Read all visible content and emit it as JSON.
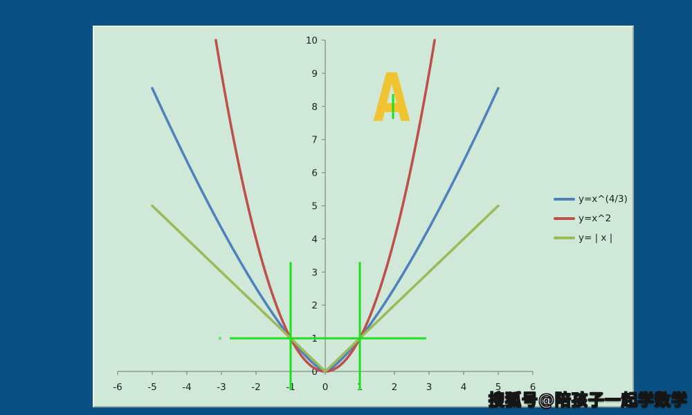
{
  "page": {
    "background_color": "#0b5083"
  },
  "watermark": {
    "text": "搜狐号@陪孩子一起学数学",
    "color": "#ffffff",
    "outline_color": "#161616"
  },
  "chart_data": {
    "type": "line",
    "title": "",
    "panel_background": "#cfe8d8",
    "axis_color": "#7d8d7d",
    "tick_label_color": "#1c211c",
    "grid": "off",
    "x_axis": {
      "min": -6,
      "max": 6,
      "tick_step": 1,
      "ticks": [
        -6,
        -5,
        -4,
        -3,
        -2,
        -1,
        0,
        1,
        2,
        3,
        4,
        5,
        6
      ],
      "tick_labels": [
        "-6",
        "-5",
        "-4",
        "-3",
        "-2",
        "-1",
        "0",
        "1",
        "2",
        "3",
        "4",
        "5",
        "6"
      ]
    },
    "y_axis": {
      "min": 0,
      "max": 10,
      "tick_step": 1,
      "ticks": [
        0,
        1,
        2,
        3,
        4,
        5,
        6,
        7,
        8,
        9,
        10
      ],
      "tick_labels": [
        "0",
        "1",
        "2",
        "3",
        "4",
        "5",
        "6",
        "7",
        "8",
        "9",
        "10"
      ]
    },
    "series": [
      {
        "name": "y=x^(4/3)",
        "color": "#4f81bd",
        "fn": "pow_4_3",
        "x_min": -5,
        "x_max": 5,
        "key_points": [
          [
            -5,
            8.55
          ],
          [
            -1,
            1
          ],
          [
            0,
            0
          ],
          [
            1,
            1
          ],
          [
            5,
            8.55
          ]
        ]
      },
      {
        "name": "y=x^2",
        "color": "#bf4f4b",
        "fn": "square",
        "x_min": -3.162,
        "x_max": 3.162,
        "key_points": [
          [
            -3.162,
            10
          ],
          [
            -1,
            1
          ],
          [
            0,
            0
          ],
          [
            1,
            1
          ],
          [
            3.162,
            10
          ]
        ]
      },
      {
        "name": "y= | x |",
        "color": "#9bbb59",
        "fn": "abs",
        "x_min": -5,
        "x_max": 5,
        "key_points": [
          [
            -5,
            5
          ],
          [
            -1,
            1
          ],
          [
            0,
            0
          ],
          [
            1,
            1
          ],
          [
            5,
            5
          ]
        ]
      }
    ],
    "legend": {
      "position": "right",
      "entries": [
        "y=x^(4/3)",
        "y=x^2",
        "y= | x |"
      ]
    },
    "annotations": {
      "color": "#1fdd1f",
      "intersection_points": [
        [
          -1,
          1
        ],
        [
          1,
          1
        ]
      ],
      "h_line": {
        "y": 1,
        "x1": -2.76,
        "x2": 2.92
      },
      "v_lines": [
        {
          "x": -1,
          "y1": -0.57,
          "y2": 3.3
        },
        {
          "x": 1,
          "y1": -0.57,
          "y2": 3.3
        }
      ],
      "dot": {
        "x": -3.04,
        "y": 1
      },
      "letter": {
        "text": "A",
        "x": 1.92,
        "y": 8.25,
        "color": "#f0c431"
      },
      "letter_tick": {
        "x": 1.96,
        "y1": 7.62,
        "y2": 8.37
      }
    }
  }
}
